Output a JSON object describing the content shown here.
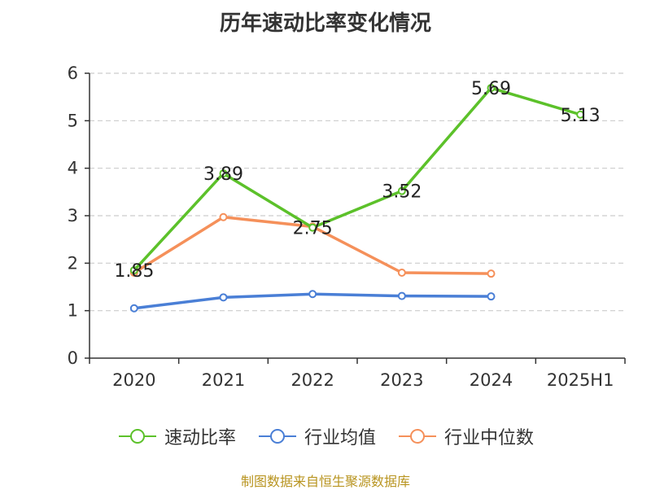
{
  "chart_data": {
    "type": "line",
    "title": "历年速动比率变化情况",
    "categories": [
      "2020",
      "2021",
      "2022",
      "2023",
      "2024",
      "2025H1"
    ],
    "ylim": [
      0,
      6
    ],
    "yticks": [
      "0",
      "1",
      "2",
      "3",
      "4",
      "5",
      "6"
    ],
    "grid": true,
    "legend_position": "bottom",
    "series": [
      {
        "name": "速动比率",
        "color": "#5cc12a",
        "values": [
          1.85,
          3.89,
          2.75,
          3.52,
          5.69,
          5.13
        ],
        "labels": [
          "1.85",
          "3.89",
          "2.75",
          "3.52",
          "5.69",
          "5.13"
        ]
      },
      {
        "name": "行业均值",
        "color": "#4a7fd6",
        "values": [
          1.05,
          1.28,
          1.35,
          1.31,
          1.3,
          null
        ]
      },
      {
        "name": "行业中位数",
        "color": "#f5905a",
        "values": [
          1.8,
          2.97,
          2.77,
          1.8,
          1.78,
          null
        ]
      }
    ]
  },
  "source": "制图数据来自恒生聚源数据库"
}
